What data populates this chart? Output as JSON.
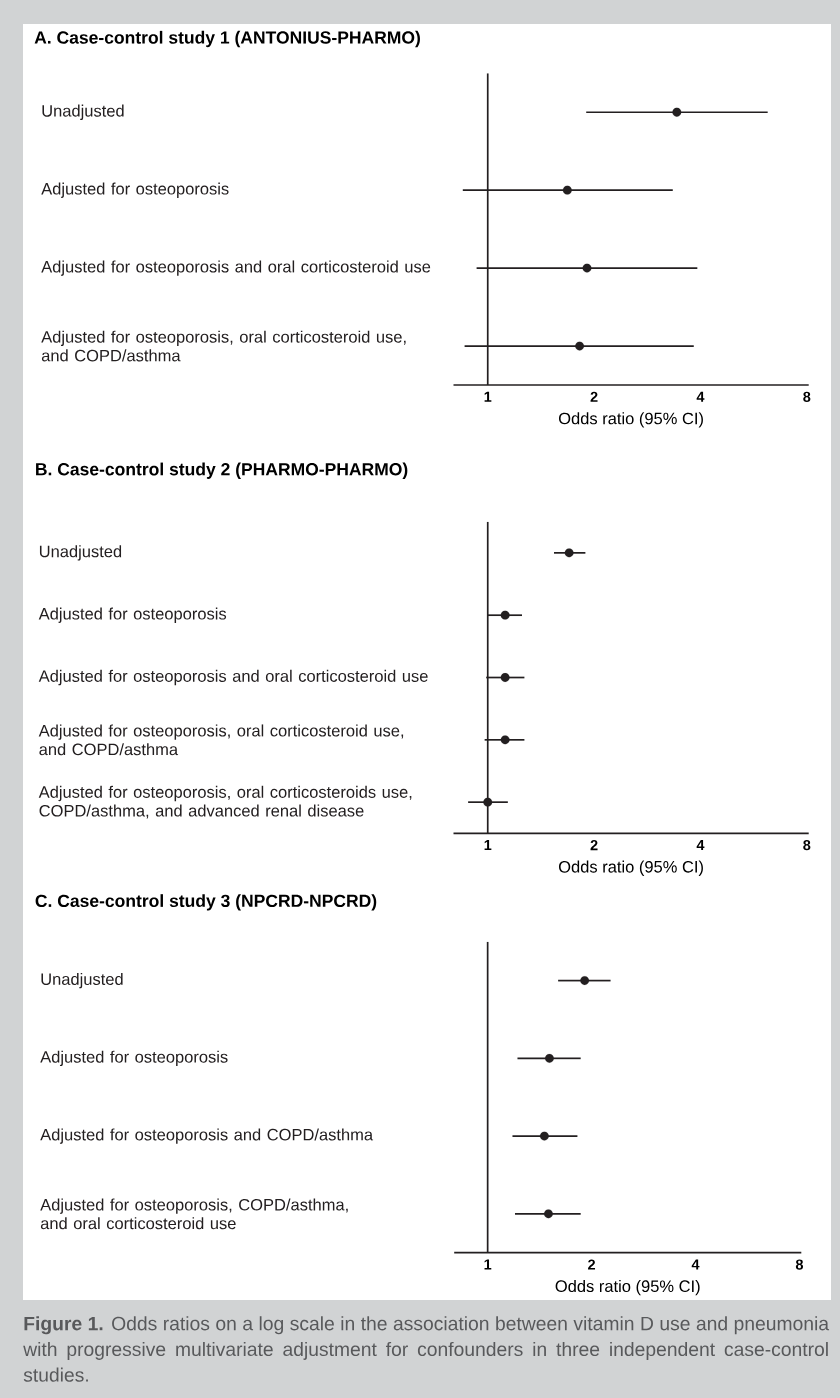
{
  "chart_data": [
    {
      "type": "scatter",
      "orientation": "horizontal",
      "title": "A. Case-control study 1 (ANTONIUS-PHARMO)",
      "xlabel": "Odds ratio (95% CI)",
      "categories": [
        "Unadjusted",
        "Adjusted for osteoporosis",
        "Adjusted for osteoporosis and oral corticosteroid use",
        "Adjusted for osteoporosis, oral corticosteroid use, and COPD/asthma"
      ],
      "values": [
        3.43,
        1.68,
        1.91,
        1.82
      ],
      "errors": [
        [
          1.9,
          6.2
        ],
        [
          0.85,
          3.34
        ],
        [
          0.93,
          3.92
        ],
        [
          0.86,
          3.83
        ]
      ],
      "color": "#231f20",
      "marker": "circle",
      "log": "x",
      "xlim": [
        0.8,
        8.1
      ],
      "xticks": [
        1,
        2,
        4,
        8
      ],
      "ref_lines": [
        {
          "axis": "x",
          "value": 1,
          "color": "#231f20"
        }
      ]
    },
    {
      "type": "scatter",
      "orientation": "horizontal",
      "title": "B. Case-control study 2 (PHARMO-PHARMO)",
      "xlabel": "Odds ratio (95% CI)",
      "categories": [
        "Unadjusted",
        "Adjusted for osteoporosis",
        "Adjusted for osteoporosis and oral corticosteroid use",
        "Adjusted for osteoporosis, oral corticosteroid use, and COPD/asthma",
        "Adjusted for osteoporosis, oral corticosteroids use, COPD/asthma, and advanced renal disease"
      ],
      "values": [
        1.7,
        1.12,
        1.12,
        1.12,
        1.0
      ],
      "errors": [
        [
          1.54,
          1.89
        ],
        [
          1.0,
          1.25
        ],
        [
          0.99,
          1.27
        ],
        [
          0.98,
          1.27
        ],
        [
          0.88,
          1.14
        ]
      ],
      "color": "#231f20",
      "marker": "circle",
      "log": "x",
      "xlim": [
        0.8,
        8.1
      ],
      "xticks": [
        1,
        2,
        4,
        8
      ],
      "ref_lines": [
        {
          "axis": "x",
          "value": 1,
          "color": "#231f20"
        }
      ]
    },
    {
      "type": "scatter",
      "orientation": "horizontal",
      "title": "C. Case-control study 3 (NPCRD-NPCRD)",
      "xlabel": "Odds ratio (95% CI)",
      "categories": [
        "Unadjusted",
        "Adjusted for osteoporosis",
        "Adjusted for osteoporosis and COPD/asthma",
        "Adjusted for osteoporosis, COPD/asthma, and oral corticosteroid use"
      ],
      "values": [
        1.91,
        1.51,
        1.46,
        1.5
      ],
      "errors": [
        [
          1.6,
          2.27
        ],
        [
          1.22,
          1.86
        ],
        [
          1.18,
          1.82
        ],
        [
          1.2,
          1.86
        ]
      ],
      "color": "#231f20",
      "marker": "circle",
      "log": "x",
      "xlim": [
        0.8,
        8.1
      ],
      "xticks": [
        1,
        2,
        4,
        8
      ],
      "ref_lines": [
        {
          "axis": "x",
          "value": 1,
          "color": "#231f20"
        }
      ],
      "annotations": [
        "**Figure 1.** Odds ratios on a log scale in the association between vitamin D use and pneumonia with progressive multivariate adjustment for confounders in three independent case-control studies."
      ]
    }
  ]
}
